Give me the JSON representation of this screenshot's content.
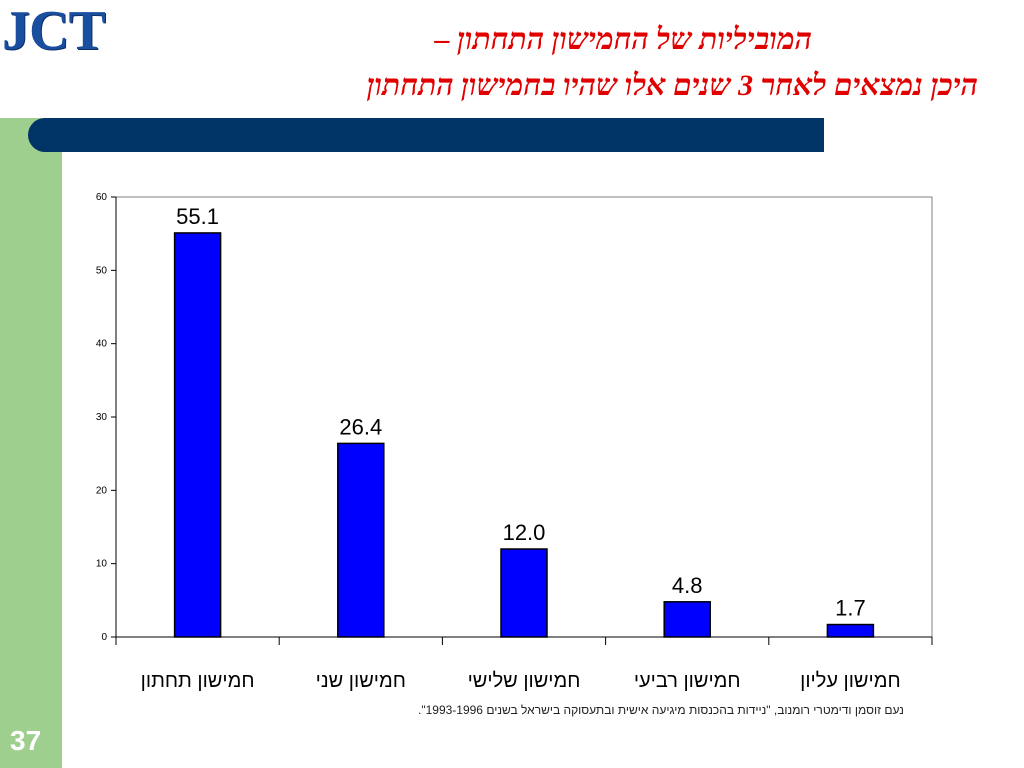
{
  "slide": {
    "logo_text": "JCT",
    "title_line1": "המוביליות של החמישון התחתון –",
    "title_line2": "היכן נמצאים לאחר 3 שנים אלו שהיו בחמישון התחתון",
    "slide_number": "37",
    "source_note": "נעם זוסמן ודימטרי רומנוב, \"ניידות בהכנסות מיגיעה אישית ובתעסוקה בישראל בשנים 1993-1996\"."
  },
  "colors": {
    "bar": "#0000ff",
    "title": "#e00000",
    "banner": "#003366",
    "sidebar": "#9fcf8f"
  },
  "chart_data": {
    "type": "bar",
    "categories": [
      "חמישון תחתון",
      "חמישון שני",
      "חמישון שלישי",
      "חמישון רביעי",
      "חמישון עליון"
    ],
    "values": [
      55.1,
      26.4,
      12.0,
      4.8,
      1.7
    ],
    "value_labels": [
      "55.1",
      "26.4",
      "12.0",
      "4.8",
      "1.7"
    ],
    "yticks": [
      "0",
      "10",
      "20",
      "30",
      "40",
      "50",
      "60"
    ],
    "ylim": [
      0,
      60
    ],
    "grid": false,
    "legend": "none"
  }
}
